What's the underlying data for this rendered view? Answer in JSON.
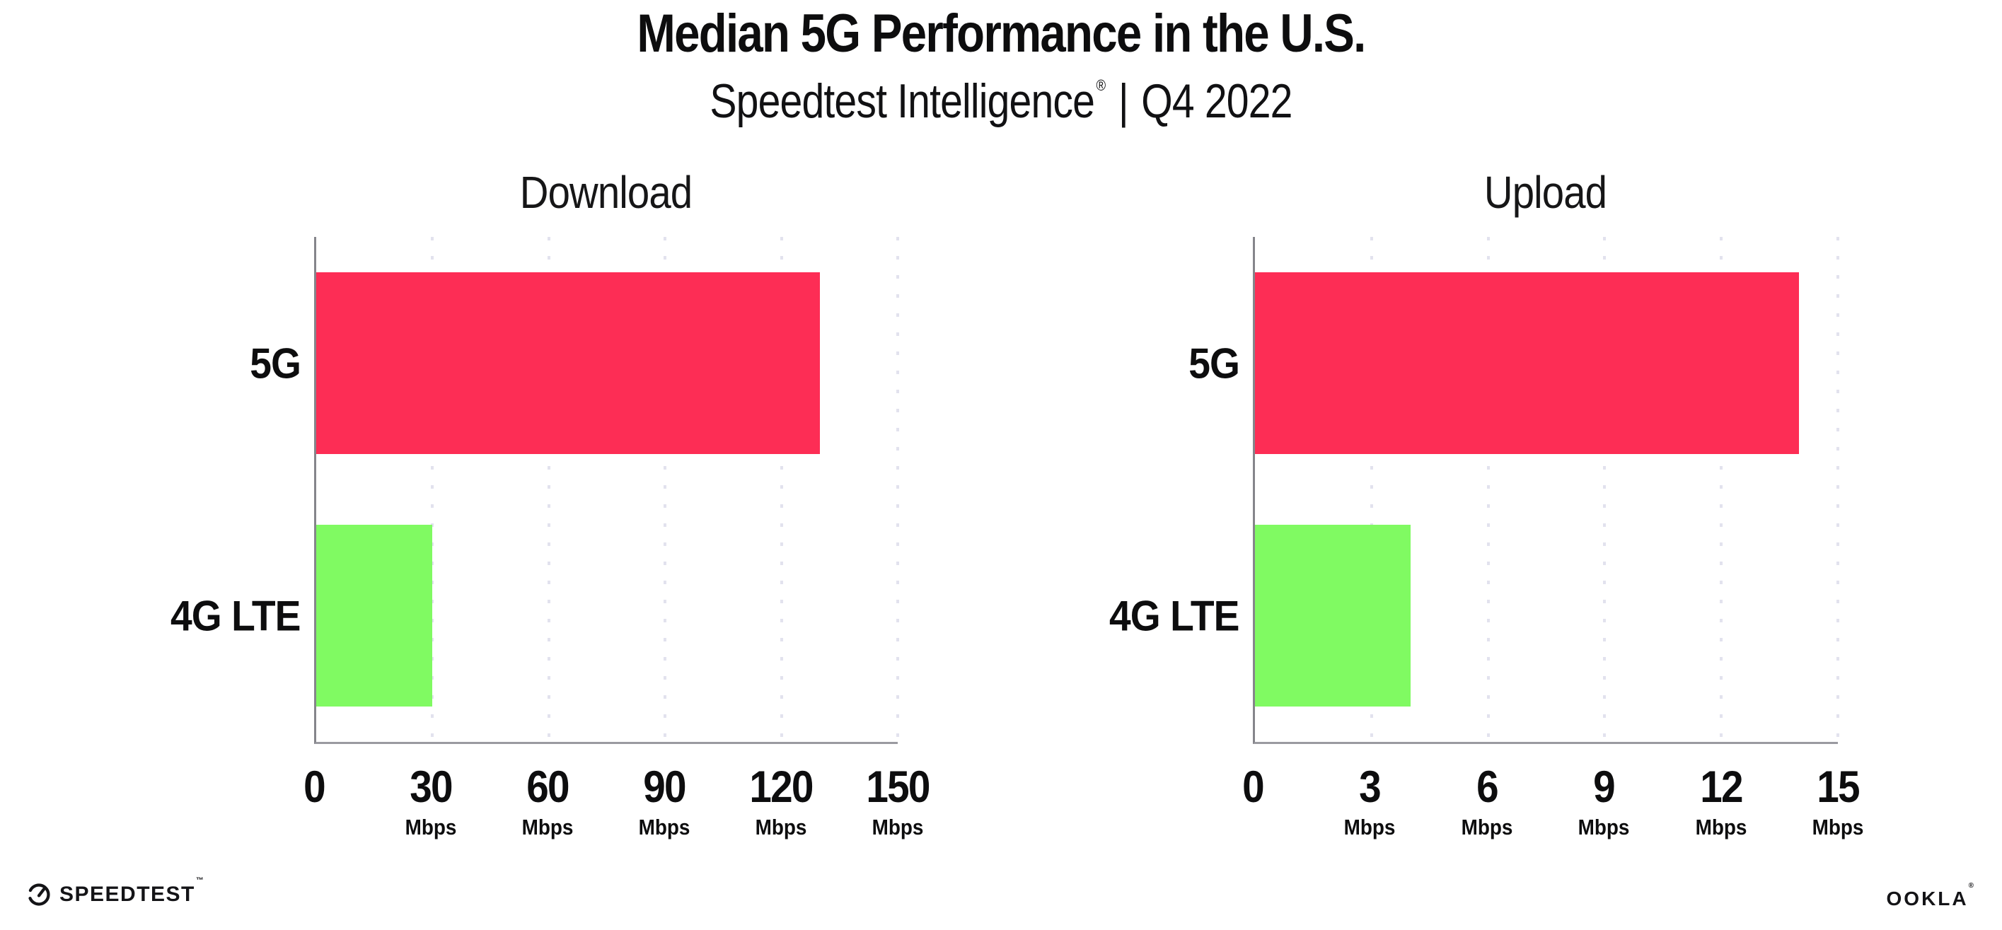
{
  "header": {
    "title": "Median 5G Performance in the U.S.",
    "subtitle": {
      "brand": "Speedtest Intelligence",
      "reg": "®",
      "divider": "|",
      "period": "Q4 2022"
    }
  },
  "chart_data": [
    {
      "type": "bar",
      "orientation": "horizontal",
      "title": "Download",
      "categories": [
        "5G",
        "4G LTE"
      ],
      "values": [
        130,
        30
      ],
      "value_unit": "Mbps",
      "xlim": [
        0,
        150
      ],
      "xticks": [
        0,
        30,
        60,
        90,
        120,
        150
      ],
      "tick_unit": "Mbps",
      "bar_colors": [
        "#FD2D55",
        "#80FA62"
      ],
      "grid": "vertical dotted",
      "legend": "none"
    },
    {
      "type": "bar",
      "orientation": "horizontal",
      "title": "Upload",
      "categories": [
        "5G",
        "4G LTE"
      ],
      "values": [
        14,
        4
      ],
      "value_unit": "Mbps",
      "xlim": [
        0,
        15
      ],
      "xticks": [
        0,
        3,
        6,
        9,
        12,
        15
      ],
      "tick_unit": "Mbps",
      "bar_colors": [
        "#FD2D55",
        "#80FA62"
      ],
      "grid": "vertical dotted",
      "legend": "none"
    }
  ],
  "footer": {
    "speedtest": {
      "wordmark": "SPEEDTEST",
      "mark": "™"
    },
    "ookla": {
      "wordmark": "OOKLA",
      "mark": "®"
    }
  },
  "colors": {
    "background": "#ffffff",
    "bar_5g": "#FD2D55",
    "bar_4g_lte": "#80FA62",
    "axis_line": "#9a9aa0",
    "axis_spine": "#85858b",
    "gridline": "#e2e2ee",
    "text": "#0d0d0e"
  }
}
